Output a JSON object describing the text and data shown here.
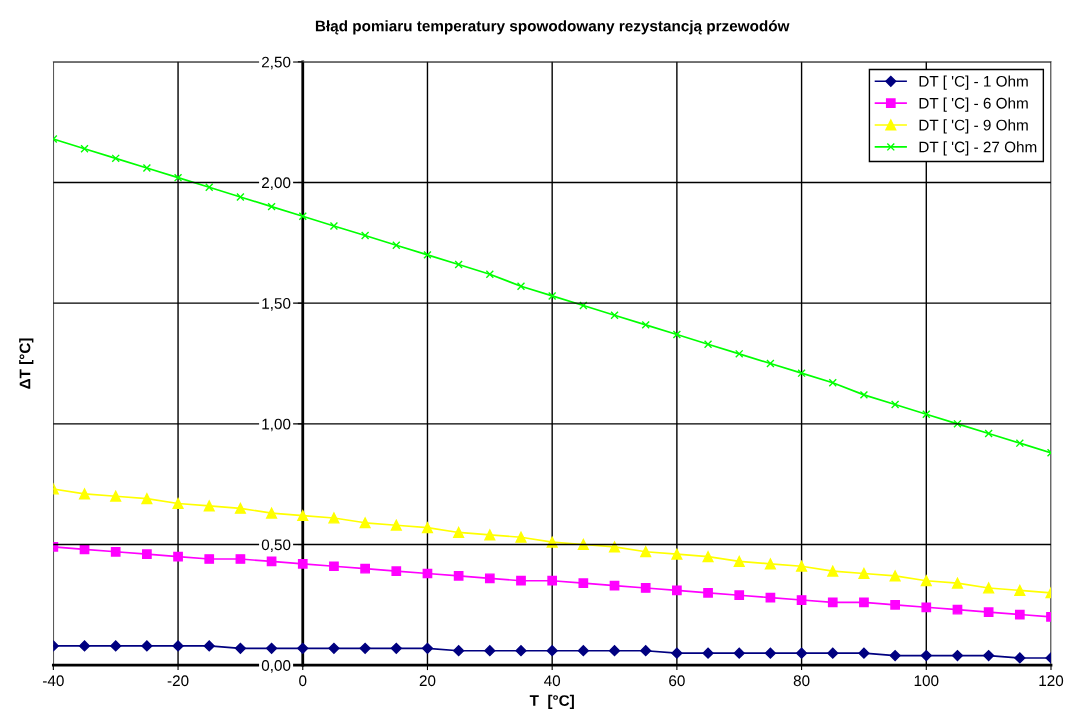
{
  "chart_data": {
    "type": "line",
    "title": "Błąd pomiaru temperatury spowodowany rezystancją przewodów",
    "xlabel": "T  [°C]",
    "ylabel": "ΔT [°C]",
    "x": [
      -40,
      -35,
      -30,
      -25,
      -20,
      -15,
      -10,
      -5,
      0,
      5,
      10,
      15,
      20,
      25,
      30,
      35,
      40,
      45,
      50,
      55,
      60,
      65,
      70,
      75,
      80,
      85,
      90,
      95,
      100,
      105,
      110,
      115,
      120
    ],
    "series": [
      {
        "name": "DT [ 'C] - 1 Ohm",
        "color": "#000080",
        "marker": "diamond",
        "values": [
          0.08,
          0.08,
          0.08,
          0.08,
          0.08,
          0.08,
          0.07,
          0.07,
          0.07,
          0.07,
          0.07,
          0.07,
          0.07,
          0.06,
          0.06,
          0.06,
          0.06,
          0.06,
          0.06,
          0.06,
          0.05,
          0.05,
          0.05,
          0.05,
          0.05,
          0.05,
          0.05,
          0.04,
          0.04,
          0.04,
          0.04,
          0.03,
          0.03
        ]
      },
      {
        "name": "DT [ 'C] - 6 Ohm",
        "color": "#ff00ff",
        "marker": "square",
        "values": [
          0.49,
          0.48,
          0.47,
          0.46,
          0.45,
          0.44,
          0.44,
          0.43,
          0.42,
          0.41,
          0.4,
          0.39,
          0.38,
          0.37,
          0.36,
          0.35,
          0.35,
          0.34,
          0.33,
          0.32,
          0.31,
          0.3,
          0.29,
          0.28,
          0.27,
          0.26,
          0.26,
          0.25,
          0.24,
          0.23,
          0.22,
          0.21,
          0.2
        ]
      },
      {
        "name": "DT [ 'C] - 9 Ohm",
        "color": "#ffff00",
        "marker": "triangle",
        "values": [
          0.73,
          0.71,
          0.7,
          0.69,
          0.67,
          0.66,
          0.65,
          0.63,
          0.62,
          0.61,
          0.59,
          0.58,
          0.57,
          0.55,
          0.54,
          0.53,
          0.51,
          0.5,
          0.49,
          0.47,
          0.46,
          0.45,
          0.43,
          0.42,
          0.41,
          0.39,
          0.38,
          0.37,
          0.35,
          0.34,
          0.32,
          0.31,
          0.3
        ]
      },
      {
        "name": "DT [ 'C] - 27 Ohm",
        "color": "#00ff00",
        "marker": "cross",
        "values": [
          2.18,
          2.14,
          2.1,
          2.06,
          2.02,
          1.98,
          1.94,
          1.9,
          1.86,
          1.82,
          1.78,
          1.74,
          1.7,
          1.66,
          1.62,
          1.57,
          1.53,
          1.49,
          1.45,
          1.41,
          1.37,
          1.33,
          1.29,
          1.25,
          1.21,
          1.17,
          1.12,
          1.08,
          1.04,
          1.0,
          0.96,
          0.92,
          0.88
        ]
      }
    ],
    "xlim": [
      -40,
      120
    ],
    "xticks": [
      -40,
      -20,
      0,
      20,
      40,
      60,
      80,
      100,
      120
    ],
    "ylim": [
      0,
      2.5
    ],
    "yticks": [
      {
        "value": 0,
        "label": "0,00"
      },
      {
        "value": 0.5,
        "label": "0,50"
      },
      {
        "value": 1,
        "label": "1,00"
      },
      {
        "value": 1.5,
        "label": "1,50"
      },
      {
        "value": 2,
        "label": "2,00"
      },
      {
        "value": 2.5,
        "label": "2,50"
      }
    ],
    "grid": true,
    "legend": "top right",
    "line_style": "solid"
  }
}
